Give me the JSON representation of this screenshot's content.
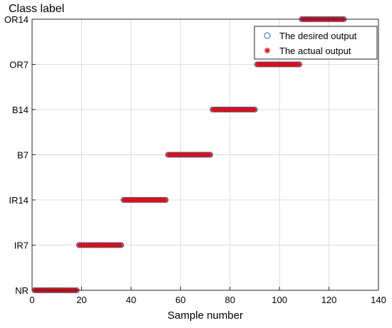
{
  "chart_data": {
    "type": "scatter",
    "title": "Class label",
    "xlabel": "Sample number",
    "ylabel": "",
    "xlim": [
      0,
      140
    ],
    "xticks": [
      0,
      20,
      40,
      60,
      80,
      100,
      120,
      140
    ],
    "y_categories": [
      "NR",
      "IR7",
      "IR14",
      "B7",
      "B14",
      "OR7",
      "OR14"
    ],
    "grid": true,
    "legend_position": "top-right",
    "segments": [
      {
        "label": "NR",
        "x_start": 1,
        "x_end": 18
      },
      {
        "label": "IR7",
        "x_start": 19,
        "x_end": 36
      },
      {
        "label": "IR14",
        "x_start": 37,
        "x_end": 54
      },
      {
        "label": "B7",
        "x_start": 55,
        "x_end": 72
      },
      {
        "label": "B14",
        "x_start": 73,
        "x_end": 90
      },
      {
        "label": "OR7",
        "x_start": 91,
        "x_end": 108
      },
      {
        "label": "OR14",
        "x_start": 109,
        "x_end": 126
      }
    ],
    "series": [
      {
        "name": "The desired output",
        "marker": "circle",
        "color": "#0072BD"
      },
      {
        "name": "The actual output",
        "marker": "asterisk",
        "color": "#FF0000"
      }
    ]
  }
}
